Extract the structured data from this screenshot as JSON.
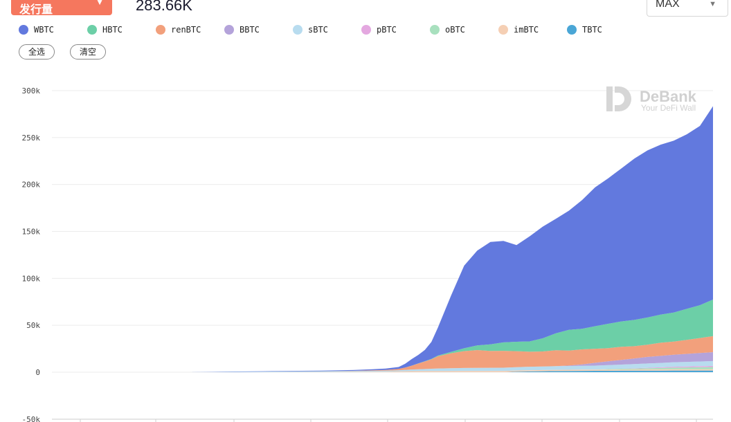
{
  "header": {
    "metric_label": "发行量",
    "supply_value": "283.66K",
    "range_value": "MAX"
  },
  "legend_buttons": {
    "select_all": "全选",
    "clear": "清空"
  },
  "watermark": {
    "brand": "DeBank",
    "tagline": "Your DeFi Wall"
  },
  "colors": {
    "WBTC": "#6279de",
    "HBTC": "#6ccfa7",
    "renBTC": "#f2a07c",
    "BBTC": "#b4a3da",
    "sBTC": "#b8dcef",
    "pBTC": "#e4a8e0",
    "oBTC": "#a8e0be",
    "imBTC": "#f5cfb4",
    "TBTC": "#4aa6d6",
    "accent": "#f5775e"
  },
  "chart_data": {
    "type": "area",
    "stacked": true,
    "title": "",
    "xlabel": "",
    "ylabel": "",
    "ylim": [
      -50000,
      300000
    ],
    "y_ticks": [
      -50000,
      0,
      50000,
      100000,
      150000,
      200000,
      250000,
      300000
    ],
    "y_tick_labels": [
      "-50k",
      "0",
      "50k",
      "100k",
      "150k",
      "200k",
      "250k",
      "300k"
    ],
    "grid": true,
    "legend_position": "top-left",
    "x_index": [
      0,
      5,
      10,
      15,
      20,
      25,
      30,
      35,
      40,
      45,
      48,
      50,
      52,
      53,
      54,
      55,
      56,
      57,
      58,
      60,
      62,
      64,
      66,
      68,
      70,
      72,
      74,
      76,
      78,
      80,
      82,
      84,
      86,
      88,
      90,
      92,
      94,
      96,
      98,
      100
    ],
    "series": [
      {
        "name": "TBTC",
        "values": [
          0,
          0,
          0,
          0,
          0,
          0,
          0,
          0,
          0,
          0,
          0,
          0,
          0,
          0,
          0,
          0,
          0,
          0,
          0,
          0,
          0,
          0,
          0,
          0,
          500,
          800,
          1000,
          1200,
          1300,
          1400,
          1500,
          1500,
          1600,
          1600,
          1700,
          1700,
          1800,
          1800,
          1800,
          1800
        ]
      },
      {
        "name": "imBTC",
        "values": [
          0,
          0,
          0,
          0,
          0,
          0,
          0,
          200,
          300,
          400,
          500,
          600,
          800,
          1000,
          1100,
          1200,
          1200,
          1200,
          1200,
          1200,
          1300,
          1300,
          1300,
          1300,
          1300,
          1300,
          1300,
          1300,
          1300,
          1300,
          1300,
          1300,
          1300,
          1300,
          1300,
          1300,
          1300,
          1300,
          1300,
          1300
        ]
      },
      {
        "name": "oBTC",
        "values": [
          0,
          0,
          0,
          0,
          0,
          0,
          0,
          0,
          0,
          0,
          0,
          0,
          0,
          0,
          0,
          0,
          0,
          0,
          0,
          0,
          0,
          0,
          0,
          0,
          0,
          0,
          0,
          0,
          0,
          0,
          0,
          500,
          800,
          1000,
          1200,
          1500,
          1800,
          2000,
          2200,
          2400
        ]
      },
      {
        "name": "pBTC",
        "values": [
          0,
          0,
          0,
          0,
          0,
          0,
          0,
          0,
          0,
          0,
          0,
          0,
          0,
          0,
          0,
          0,
          0,
          0,
          0,
          0,
          0,
          0,
          0,
          0,
          0,
          0,
          0,
          0,
          0,
          0,
          0,
          0,
          0,
          300,
          500,
          700,
          900,
          1000,
          1100,
          1200
        ]
      },
      {
        "name": "sBTC",
        "values": [
          0,
          0,
          0,
          0,
          0,
          300,
          500,
          700,
          800,
          900,
          1000,
          1000,
          1200,
          1500,
          1800,
          2000,
          2200,
          2500,
          2800,
          3000,
          3200,
          3300,
          3400,
          3500,
          3600,
          3700,
          3800,
          3900,
          4000,
          4100,
          4200,
          4300,
          4400,
          4500,
          4600,
          4700,
          4800,
          4900,
          5000,
          5200
        ]
      },
      {
        "name": "BBTC",
        "values": [
          0,
          0,
          0,
          0,
          0,
          0,
          0,
          0,
          0,
          0,
          0,
          0,
          0,
          0,
          0,
          0,
          0,
          0,
          0,
          0,
          0,
          0,
          0,
          0,
          0,
          0,
          0,
          0,
          500,
          1500,
          3000,
          4000,
          5000,
          6000,
          7000,
          7500,
          8000,
          8500,
          9000,
          9500
        ]
      },
      {
        "name": "renBTC",
        "values": [
          0,
          0,
          0,
          0,
          0,
          0,
          0,
          0,
          0,
          200,
          500,
          800,
          1500,
          2500,
          4000,
          6000,
          8000,
          10000,
          13000,
          16000,
          18000,
          19000,
          18000,
          18000,
          17000,
          16000,
          16000,
          17000,
          16000,
          16000,
          15000,
          14000,
          14000,
          13000,
          13000,
          14000,
          14000,
          15000,
          16000,
          17000
        ]
      },
      {
        "name": "HBTC",
        "values": [
          0,
          0,
          0,
          0,
          0,
          0,
          0,
          0,
          0,
          0,
          0,
          0,
          0,
          0,
          100,
          200,
          300,
          500,
          800,
          1500,
          3000,
          5000,
          7000,
          9000,
          10000,
          11000,
          14000,
          18000,
          22000,
          22000,
          24000,
          26000,
          27000,
          28000,
          29000,
          30000,
          31000,
          33000,
          35000,
          39000
        ]
      },
      {
        "name": "WBTC",
        "values": [
          0,
          0,
          0,
          0,
          0,
          200,
          400,
          500,
          600,
          800,
          1200,
          1500,
          2000,
          4000,
          7000,
          9000,
          12000,
          18000,
          30000,
          60000,
          88000,
          101000,
          109000,
          108000,
          103000,
          112000,
          119000,
          122000,
          127000,
          137000,
          148000,
          155000,
          163000,
          172000,
          178000,
          181000,
          183000,
          186000,
          191000,
          206000
        ]
      }
    ]
  }
}
